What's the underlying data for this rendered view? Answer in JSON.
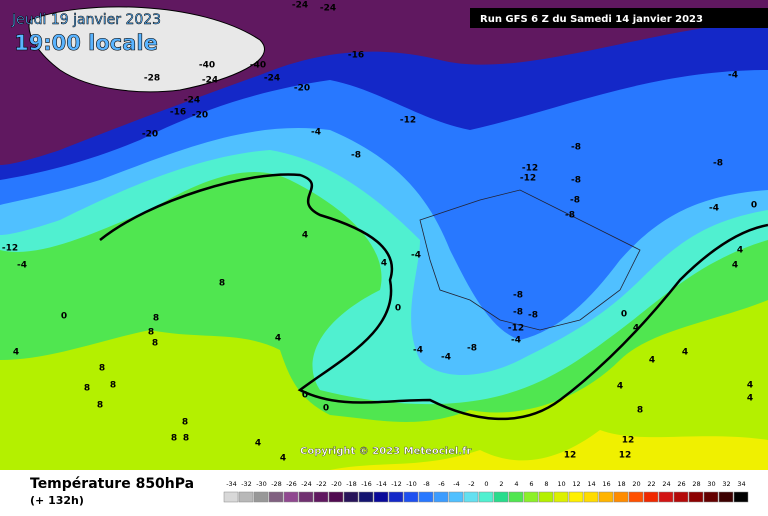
{
  "header": {
    "date": "Jeudi 19 janvier 2023",
    "time": "19:00 locale",
    "run": "Run GFS 6 Z du Samedi 14 janvier 2023"
  },
  "copyright": "Copyright © 2023 Meteociel.fr",
  "footer": {
    "title": "Température 850hPa",
    "lead": "(+ 132h)"
  },
  "scale": {
    "values": [
      -34,
      -32,
      -30,
      -28,
      -26,
      -24,
      -22,
      -20,
      -18,
      -16,
      -14,
      -12,
      -10,
      -8,
      -6,
      -4,
      -2,
      0,
      2,
      4,
      6,
      8,
      10,
      12,
      14,
      16,
      18,
      20,
      22,
      24,
      26,
      28,
      30,
      32,
      34
    ],
    "colors": [
      "#d8d8d8",
      "#b8b8b8",
      "#989898",
      "#806080",
      "#904890",
      "#703070",
      "#601860",
      "#500a50",
      "#28145a",
      "#141470",
      "#0a0a9a",
      "#1428c8",
      "#1e50f0",
      "#2878ff",
      "#3c9cff",
      "#50c0ff",
      "#64e0f0",
      "#50f0d0",
      "#28dc8c",
      "#50e650",
      "#8cf028",
      "#b4f000",
      "#dcf000",
      "#fff000",
      "#ffdc00",
      "#ffb400",
      "#ff8c00",
      "#ff5000",
      "#f02800",
      "#d21414",
      "#b40a0a",
      "#8c0000",
      "#640000",
      "#3c0000",
      "#000000"
    ]
  },
  "contour_labels": [
    -24,
    -24,
    -40,
    -40,
    -28,
    -24,
    -24,
    -20,
    -16,
    -24,
    -16,
    -20,
    -20,
    -12,
    -4,
    -8,
    -4,
    -8,
    -12,
    -12,
    -8,
    -8,
    -8,
    -8,
    -4,
    0,
    -12,
    -4,
    4,
    -4,
    4,
    8,
    4,
    4,
    0,
    8,
    8,
    8,
    0,
    -8,
    -8,
    -8,
    -12,
    0,
    4,
    4,
    4,
    -4,
    -4,
    -8,
    -4,
    8,
    8,
    8,
    8,
    0,
    0,
    4,
    4,
    4,
    4,
    4,
    8,
    8,
    8,
    8,
    4,
    12,
    12,
    12,
    4
  ]
}
